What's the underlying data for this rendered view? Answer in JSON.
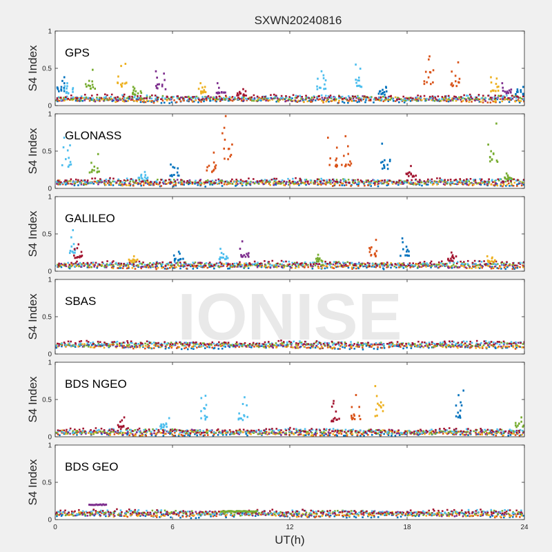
{
  "chart_data": {
    "type": "scatter",
    "title": "SXWN20240816",
    "xlabel": "UT(h)",
    "ylabel": "S4 Index",
    "xlim": [
      0,
      24
    ],
    "ylim": [
      0,
      1
    ],
    "xticks": [
      "0",
      "6",
      "12",
      "18",
      "24"
    ],
    "yticks": [
      "0",
      "0.5",
      "1"
    ],
    "watermark": "IONISE",
    "grid": false,
    "colors": [
      "#0072BD",
      "#D95319",
      "#EDB120",
      "#7E2F8E",
      "#77AC30",
      "#4DBEEE",
      "#A2142F"
    ],
    "panels": [
      {
        "name": "GPS",
        "baseline": 0.09,
        "spikes": [
          {
            "x": 0.3,
            "y": 0.38,
            "c": 0
          },
          {
            "x": 0.7,
            "y": 0.3,
            "c": 5
          },
          {
            "x": 1.8,
            "y": 0.48,
            "c": 4
          },
          {
            "x": 3.4,
            "y": 0.56,
            "c": 2
          },
          {
            "x": 4.2,
            "y": 0.25,
            "c": 4
          },
          {
            "x": 5.4,
            "y": 0.46,
            "c": 3
          },
          {
            "x": 7.5,
            "y": 0.3,
            "c": 2
          },
          {
            "x": 8.5,
            "y": 0.3,
            "c": 3
          },
          {
            "x": 9.5,
            "y": 0.22,
            "c": 6
          },
          {
            "x": 13.6,
            "y": 0.46,
            "c": 5
          },
          {
            "x": 15.6,
            "y": 0.55,
            "c": 5
          },
          {
            "x": 16.8,
            "y": 0.25,
            "c": 0
          },
          {
            "x": 19.1,
            "y": 0.66,
            "c": 1
          },
          {
            "x": 20.5,
            "y": 0.58,
            "c": 1
          },
          {
            "x": 22.5,
            "y": 0.38,
            "c": 2
          },
          {
            "x": 23.1,
            "y": 0.3,
            "c": 3
          },
          {
            "x": 23.8,
            "y": 0.25,
            "c": 0
          }
        ]
      },
      {
        "name": "GLONASS",
        "baseline": 0.08,
        "spikes": [
          {
            "x": 0.6,
            "y": 0.68,
            "c": 5
          },
          {
            "x": 2.0,
            "y": 0.46,
            "c": 4
          },
          {
            "x": 4.5,
            "y": 0.22,
            "c": 5
          },
          {
            "x": 6.1,
            "y": 0.32,
            "c": 0
          },
          {
            "x": 8.0,
            "y": 0.48,
            "c": 1
          },
          {
            "x": 8.8,
            "y": 0.97,
            "c": 1
          },
          {
            "x": 14.2,
            "y": 0.68,
            "c": 1
          },
          {
            "x": 14.9,
            "y": 0.7,
            "c": 1
          },
          {
            "x": 16.9,
            "y": 0.6,
            "c": 0
          },
          {
            "x": 18.2,
            "y": 0.3,
            "c": 6
          },
          {
            "x": 22.4,
            "y": 0.87,
            "c": 4
          },
          {
            "x": 23.2,
            "y": 0.2,
            "c": 4
          }
        ]
      },
      {
        "name": "GALILEO",
        "baseline": 0.08,
        "spikes": [
          {
            "x": 0.8,
            "y": 0.55,
            "c": 5
          },
          {
            "x": 1.2,
            "y": 0.36,
            "c": 6
          },
          {
            "x": 4.0,
            "y": 0.2,
            "c": 2
          },
          {
            "x": 6.3,
            "y": 0.26,
            "c": 0
          },
          {
            "x": 8.6,
            "y": 0.3,
            "c": 5
          },
          {
            "x": 9.7,
            "y": 0.4,
            "c": 3
          },
          {
            "x": 13.5,
            "y": 0.22,
            "c": 4
          },
          {
            "x": 16.2,
            "y": 0.42,
            "c": 1
          },
          {
            "x": 17.9,
            "y": 0.44,
            "c": 0
          },
          {
            "x": 20.3,
            "y": 0.25,
            "c": 6
          },
          {
            "x": 22.3,
            "y": 0.2,
            "c": 2
          }
        ]
      },
      {
        "name": "SBAS",
        "baseline": 0.12,
        "spikes": []
      },
      {
        "name": "BDS NGEO",
        "baseline": 0.06,
        "spikes": [
          {
            "x": 3.3,
            "y": 0.26,
            "c": 6
          },
          {
            "x": 5.6,
            "y": 0.25,
            "c": 5
          },
          {
            "x": 7.6,
            "y": 0.55,
            "c": 5
          },
          {
            "x": 9.6,
            "y": 0.53,
            "c": 5
          },
          {
            "x": 14.3,
            "y": 0.48,
            "c": 6
          },
          {
            "x": 15.4,
            "y": 0.56,
            "c": 1
          },
          {
            "x": 16.6,
            "y": 0.68,
            "c": 2
          },
          {
            "x": 20.7,
            "y": 0.62,
            "c": 0
          },
          {
            "x": 23.8,
            "y": 0.26,
            "c": 4
          }
        ]
      },
      {
        "name": "BDS GEO",
        "baseline": 0.08,
        "spikes": [],
        "segments": [
          {
            "x0": 1.75,
            "x1": 2.6,
            "y": 0.2,
            "c": 3
          },
          {
            "x0": 8.5,
            "x1": 10.3,
            "y": 0.11,
            "c": 4
          }
        ]
      }
    ]
  }
}
